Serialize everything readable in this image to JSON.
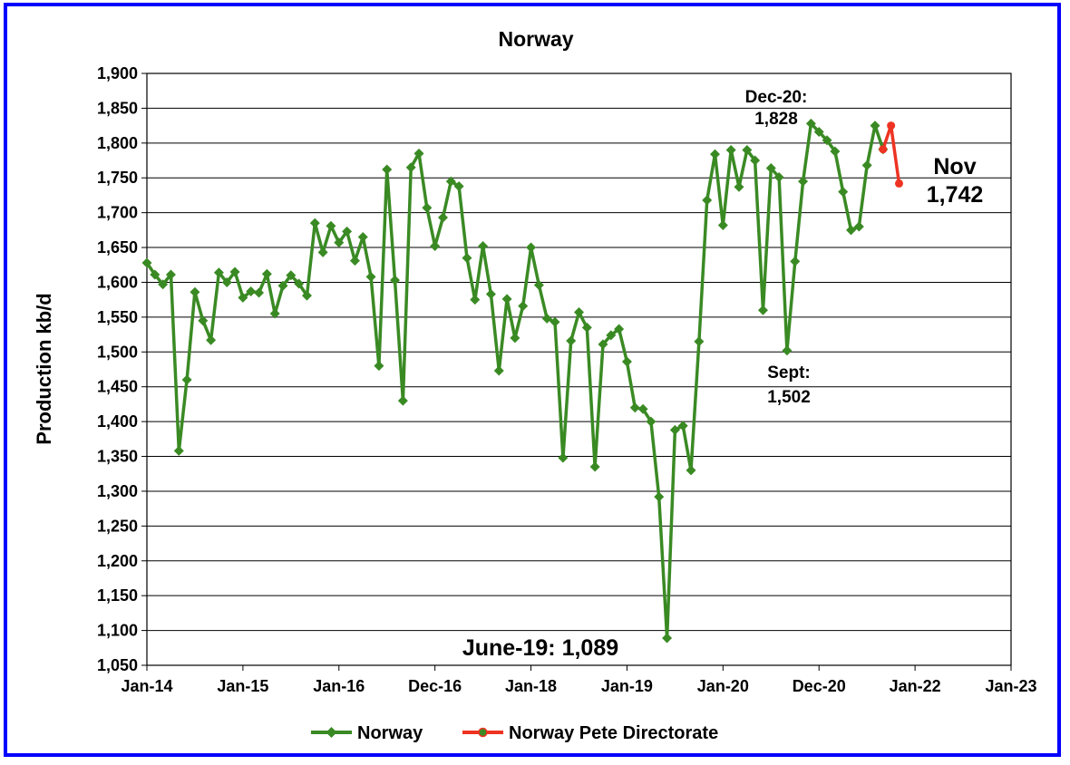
{
  "chart_data": {
    "type": "line",
    "title": "Norway",
    "xlabel": "",
    "ylabel": "Production kb/d",
    "ylim": [
      1050,
      1900
    ],
    "ytick_step": 50,
    "x_ticks": [
      "Jan-14",
      "Jan-15",
      "Jan-16",
      "Dec-16",
      "Jan-18",
      "Jan-19",
      "Jan-20",
      "Dec-20",
      "Jan-22",
      "Jan-23"
    ],
    "grid": "horizontal",
    "legend_position": "bottom",
    "series": [
      {
        "name": "Norway",
        "color": "#3a8a24",
        "marker": "diamond",
        "start_month": "Jan-14",
        "values": [
          1628,
          1611,
          1597,
          1611,
          1358,
          1460,
          1586,
          1545,
          1517,
          1614,
          1600,
          1615,
          1578,
          1587,
          1585,
          1612,
          1555,
          1595,
          1610,
          1598,
          1581,
          1685,
          1643,
          1681,
          1657,
          1673,
          1631,
          1665,
          1608,
          1480,
          1762,
          1603,
          1430,
          1765,
          1785,
          1707,
          1652,
          1693,
          1745,
          1738,
          1635,
          1575,
          1652,
          1583,
          1473,
          1576,
          1520,
          1566,
          1650,
          1596,
          1548,
          1543,
          1348,
          1516,
          1557,
          1535,
          1335,
          1511,
          1524,
          1533,
          1486,
          1420,
          1418,
          1400,
          1292,
          1089,
          1388,
          1394,
          1330,
          1515,
          1718,
          1784,
          1682,
          1790,
          1737,
          1790,
          1775,
          1560,
          1764,
          1751,
          1502,
          1630,
          1745,
          1828,
          1816,
          1804,
          1788,
          1730,
          1675,
          1680,
          1768,
          1825,
          1791
        ]
      },
      {
        "name": "Norway Pete Directorate",
        "color": "#ee3322",
        "marker": "circle",
        "start_month": "Sep-21",
        "values": [
          1791,
          1825,
          1742
        ]
      }
    ],
    "annotations": [
      {
        "lines": [
          "Dec-20:",
          "1,828"
        ]
      },
      {
        "lines": [
          "Nov",
          "1,742"
        ]
      },
      {
        "lines": [
          "Sept:",
          "1,502"
        ]
      },
      {
        "lines": [
          "June-19: 1,089"
        ]
      }
    ]
  }
}
